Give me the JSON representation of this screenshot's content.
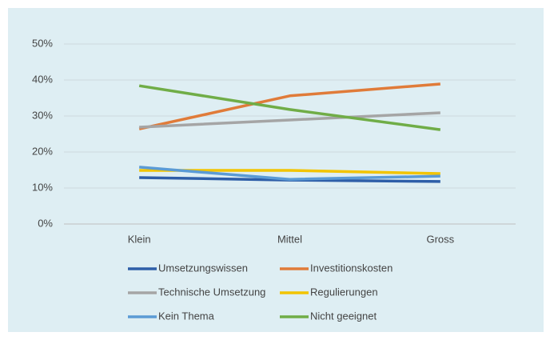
{
  "chart_data": {
    "type": "line",
    "categories": [
      "Klein",
      "Mittel",
      "Gross"
    ],
    "series": [
      {
        "name": "Umsetzungswissen",
        "color": "#2e5ea8",
        "values": [
          12.9,
          12.2,
          11.8
        ]
      },
      {
        "name": "Investitionskosten",
        "color": "#e07b39",
        "values": [
          26.4,
          35.6,
          38.9
        ]
      },
      {
        "name": "Technische Umsetzung",
        "color": "#a5a5a5",
        "values": [
          26.9,
          28.9,
          30.9
        ]
      },
      {
        "name": "Regulierungen",
        "color": "#f2c400",
        "values": [
          14.9,
          14.9,
          14.0
        ]
      },
      {
        "name": "Kein Thema",
        "color": "#5b9bd5",
        "values": [
          15.8,
          12.4,
          13.3
        ]
      },
      {
        "name": "Nicht geeignet",
        "color": "#70ad47",
        "values": [
          38.4,
          31.8,
          26.2
        ]
      }
    ],
    "ylim": [
      0,
      50
    ],
    "yticks": [
      {
        "value": 0,
        "label": "0%"
      },
      {
        "value": 10,
        "label": "10%"
      },
      {
        "value": 20,
        "label": "20%"
      },
      {
        "value": 30,
        "label": "30%"
      },
      {
        "value": 40,
        "label": "40%"
      },
      {
        "value": 50,
        "label": "50%"
      }
    ],
    "grid": true,
    "legend": "bottom"
  }
}
